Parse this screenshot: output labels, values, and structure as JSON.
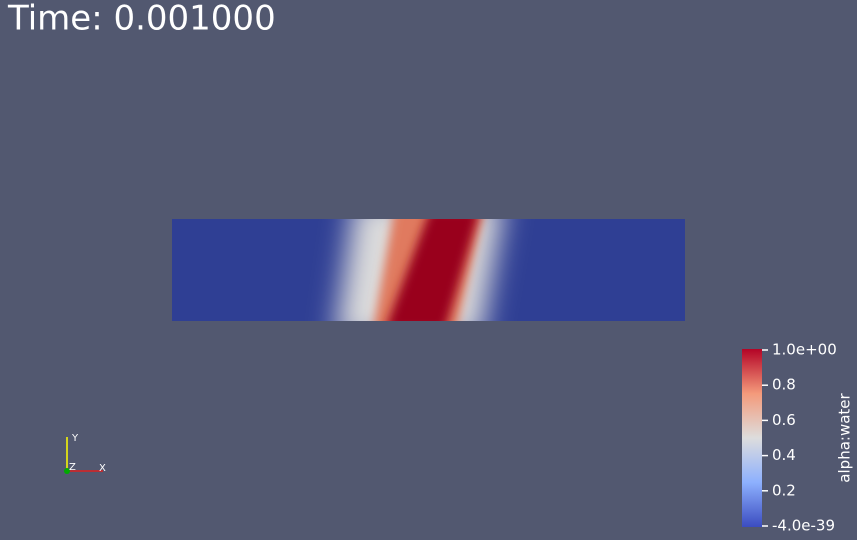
{
  "time_label": "Time: 0.001000",
  "colorbar": {
    "title": "alpha:water",
    "range": [
      -4e-39,
      1
    ],
    "ticks": [
      {
        "value": 1,
        "label": "1.0e+00"
      },
      0.8,
      0.6,
      0.4,
      0.2,
      {
        "value": -4e-39,
        "label": "-4.0e-39"
      }
    ]
  },
  "axes": {
    "x": "X",
    "y": "Y",
    "z": "Z"
  }
}
